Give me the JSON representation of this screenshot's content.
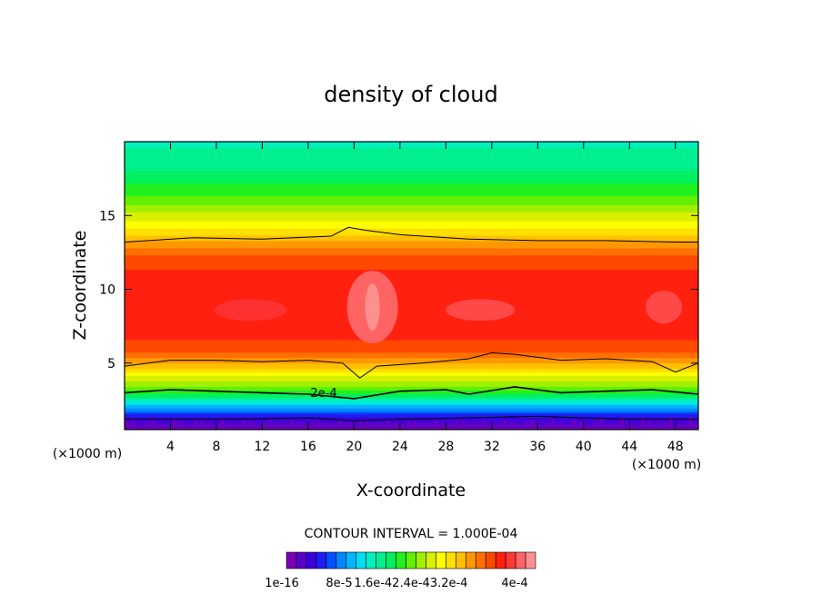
{
  "chart_data": {
    "type": "heatmap",
    "title": "density of cloud",
    "xlabel": "X-coordinate",
    "ylabel": "Z-coordinate",
    "x_unit": "(×1000 m)",
    "y_unit": "(×1000 m)",
    "xlim": [
      0,
      50
    ],
    "ylim": [
      0.5,
      20
    ],
    "x_ticks": [
      4,
      8,
      12,
      16,
      20,
      24,
      28,
      32,
      36,
      40,
      44,
      48
    ],
    "y_ticks": [
      5,
      10,
      15
    ],
    "contour_interval": "CONTOUR INTERVAL = 1.000E-04",
    "contour_label": "2e-4",
    "colorbar_labels": [
      "1e-16",
      "8e-5",
      "1.6e-4",
      "2.4e-4",
      "3.2e-4",
      "4e-4"
    ],
    "colorbar_label_text": [
      "1e-16",
      "8e-5",
      "1.6e-42.4e-43.2e-4",
      "4e-4"
    ],
    "colorbar_colors": [
      "#7a00b4",
      "#5a00c8",
      "#3c00dc",
      "#1e1ef0",
      "#0050ff",
      "#0088ff",
      "#00b8ff",
      "#00e0f0",
      "#00f0c0",
      "#00f090",
      "#00f060",
      "#20f020",
      "#60f000",
      "#a0f000",
      "#d8f000",
      "#ffff00",
      "#ffe000",
      "#ffc000",
      "#ff9800",
      "#ff7000",
      "#ff4800",
      "#ff2010",
      "#ff3838",
      "#ff6464",
      "#ff9090"
    ],
    "colorbar_range": [
      0,
      0.0004
    ],
    "profile": {
      "z": [
        0.5,
        1.0,
        1.5,
        2.0,
        2.5,
        3.0,
        3.5,
        4.0,
        4.5,
        5.0,
        5.5,
        6.0,
        7.0,
        8.0,
        9.0,
        10.0,
        11.0,
        12.0,
        13.0,
        14.0,
        15.0,
        16.0,
        17.0,
        18.0,
        19.0,
        20.0
      ],
      "density": [
        1e-05,
        3e-05,
        6e-05,
        0.0001,
        0.00014,
        0.00018,
        0.00021,
        0.00023,
        0.00026,
        0.00029,
        0.00031,
        0.00033,
        0.00034,
        0.00035,
        0.00035,
        0.00035,
        0.00034,
        0.00033,
        0.0003,
        0.00026,
        0.00023,
        0.0002,
        0.00018,
        0.00016,
        0.00015,
        0.00014
      ]
    },
    "contour_lines": [
      {
        "level": 0.0001,
        "x": [
          0,
          10,
          16,
          20,
          24,
          30,
          36,
          40,
          44,
          50
        ],
        "z": [
          1.2,
          1.2,
          1.3,
          1.1,
          1.2,
          1.3,
          1.4,
          1.3,
          1.2,
          1.2
        ]
      },
      {
        "level": 0.0002,
        "x": [
          0,
          4,
          8,
          12,
          16,
          20,
          24,
          28,
          30,
          34,
          38,
          42,
          46,
          50
        ],
        "z": [
          3.0,
          3.2,
          3.1,
          3.0,
          2.9,
          2.6,
          3.1,
          3.2,
          2.9,
          3.4,
          3.0,
          3.1,
          3.2,
          2.9
        ]
      },
      {
        "level": 0.0003,
        "x": [
          0,
          4,
          8,
          12,
          16,
          19,
          20.5,
          22,
          26,
          30,
          32,
          34,
          38,
          42,
          46,
          48,
          50
        ],
        "z": [
          4.8,
          5.2,
          5.2,
          5.1,
          5.2,
          5.0,
          4.0,
          4.8,
          5.0,
          5.3,
          5.7,
          5.6,
          5.2,
          5.3,
          5.1,
          4.4,
          5.0
        ]
      },
      {
        "level": 0.0003,
        "x": [
          0,
          6,
          12,
          18,
          19.5,
          21,
          24,
          30,
          36,
          42,
          48,
          50
        ],
        "z": [
          13.2,
          13.5,
          13.4,
          13.6,
          14.2,
          14.0,
          13.7,
          13.4,
          13.3,
          13.3,
          13.2,
          13.2
        ]
      }
    ]
  }
}
